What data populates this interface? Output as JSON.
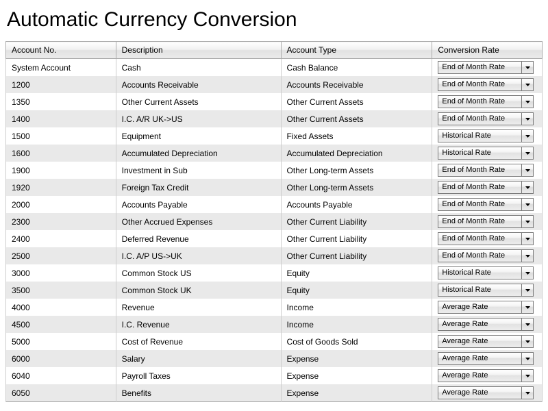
{
  "title": "Automatic Currency Conversion",
  "columns": {
    "account_no": "Account No.",
    "description": "Description",
    "account_type": "Account Type",
    "conversion_rate": "Conversion Rate"
  },
  "rows": [
    {
      "account_no": "System Account",
      "description": "Cash",
      "account_type": "Cash Balance",
      "conversion_rate": "End of Month Rate"
    },
    {
      "account_no": "1200",
      "description": "Accounts Receivable",
      "account_type": "Accounts Receivable",
      "conversion_rate": "End of Month Rate"
    },
    {
      "account_no": "1350",
      "description": "Other Current Assets",
      "account_type": "Other Current Assets",
      "conversion_rate": "End of Month Rate"
    },
    {
      "account_no": "1400",
      "description": "I.C. A/R UK->US",
      "account_type": "Other Current Assets",
      "conversion_rate": "End of Month Rate"
    },
    {
      "account_no": "1500",
      "description": "Equipment",
      "account_type": "Fixed Assets",
      "conversion_rate": "Historical Rate"
    },
    {
      "account_no": "1600",
      "description": "Accumulated Depreciation",
      "account_type": "Accumulated Depreciation",
      "conversion_rate": "Historical Rate"
    },
    {
      "account_no": "1900",
      "description": "Investment in Sub",
      "account_type": "Other Long-term Assets",
      "conversion_rate": "End of Month Rate"
    },
    {
      "account_no": "1920",
      "description": "Foreign Tax Credit",
      "account_type": "Other Long-term Assets",
      "conversion_rate": "End of Month Rate"
    },
    {
      "account_no": "2000",
      "description": "Accounts Payable",
      "account_type": "Accounts Payable",
      "conversion_rate": "End of Month Rate"
    },
    {
      "account_no": "2300",
      "description": "Other Accrued Expenses",
      "account_type": "Other Current Liability",
      "conversion_rate": "End of Month Rate"
    },
    {
      "account_no": "2400",
      "description": "Deferred Revenue",
      "account_type": "Other Current Liability",
      "conversion_rate": "End of Month Rate"
    },
    {
      "account_no": "2500",
      "description": "I.C. A/P US->UK",
      "account_type": "Other Current Liability",
      "conversion_rate": "End of Month Rate"
    },
    {
      "account_no": "3000",
      "description": "Common Stock US",
      "account_type": "Equity",
      "conversion_rate": "Historical Rate"
    },
    {
      "account_no": "3500",
      "description": "Common Stock UK",
      "account_type": "Equity",
      "conversion_rate": "Historical Rate"
    },
    {
      "account_no": "4000",
      "description": "Revenue",
      "account_type": "Income",
      "conversion_rate": "Average Rate"
    },
    {
      "account_no": "4500",
      "description": "I.C. Revenue",
      "account_type": "Income",
      "conversion_rate": "Average Rate"
    },
    {
      "account_no": "5000",
      "description": "Cost of Revenue",
      "account_type": "Cost of Goods Sold",
      "conversion_rate": "Average Rate"
    },
    {
      "account_no": "6000",
      "description": "Salary",
      "account_type": "Expense",
      "conversion_rate": "Average Rate"
    },
    {
      "account_no": "6040",
      "description": "Payroll Taxes",
      "account_type": "Expense",
      "conversion_rate": "Average Rate"
    },
    {
      "account_no": "6050",
      "description": "Benefits",
      "account_type": "Expense",
      "conversion_rate": "Average Rate"
    }
  ]
}
